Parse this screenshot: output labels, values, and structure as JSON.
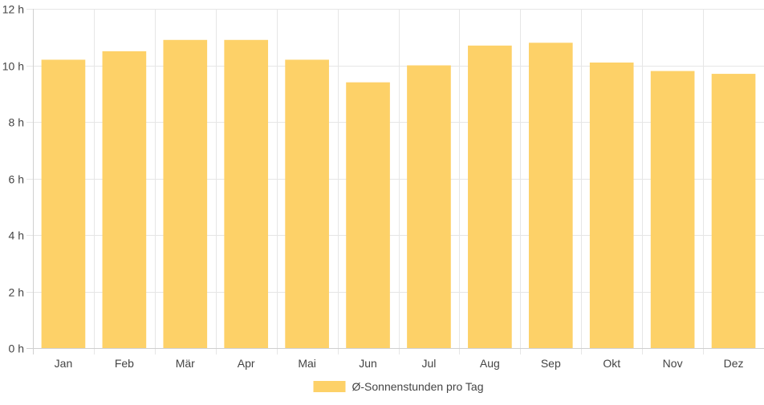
{
  "chart_data": {
    "type": "bar",
    "categories": [
      "Jan",
      "Feb",
      "Mär",
      "Apr",
      "Mai",
      "Jun",
      "Jul",
      "Aug",
      "Sep",
      "Okt",
      "Nov",
      "Dez"
    ],
    "series": [
      {
        "name": "Ø-Sonnenstunden pro Tag",
        "values": [
          10.2,
          10.5,
          10.9,
          10.9,
          10.2,
          9.4,
          10.0,
          10.7,
          10.8,
          10.1,
          9.8,
          9.7
        ],
        "color": "#fdd168"
      }
    ],
    "y_ticks": [
      0,
      2,
      4,
      6,
      8,
      10,
      12
    ],
    "y_unit_suffix": " h",
    "ylim": [
      0,
      12
    ],
    "grid": true,
    "legend_position": "bottom",
    "title": "",
    "xlabel": "",
    "ylabel": ""
  }
}
